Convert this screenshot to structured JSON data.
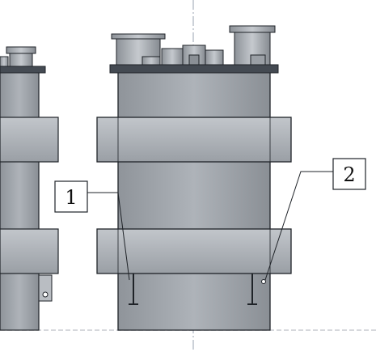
{
  "drawing": {
    "callouts": [
      {
        "label": "1"
      },
      {
        "label": "2"
      }
    ],
    "colors": {
      "body": "#a7acb2",
      "body_dark": "#8d9298",
      "band": "#b3b8be",
      "top_plate": "#444a52",
      "nozzle": "#9ea3a9",
      "outline": "#1f2328",
      "centerline": "#9aa3b2"
    }
  }
}
